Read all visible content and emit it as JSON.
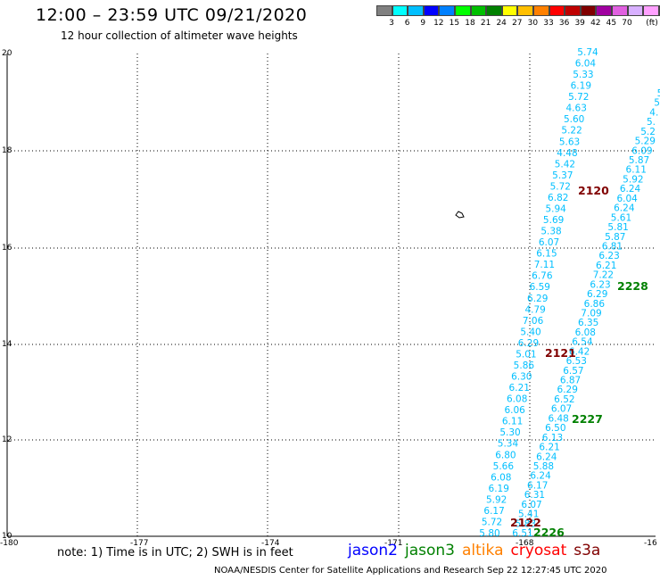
{
  "header": {
    "title": "12:00 – 23:59 UTC 09/21/2020",
    "subtitle": "12 hour collection of altimeter wave heights"
  },
  "legend": {
    "colors": [
      "#808080",
      "#00ffff",
      "#00bfff",
      "#0000ff",
      "#0080ff",
      "#00ff00",
      "#00bf00",
      "#008000",
      "#ffff00",
      "#ffbf00",
      "#ff8000",
      "#ff0000",
      "#bf0000",
      "#800000",
      "#a000a0",
      "#e060e0",
      "#d8b0ff",
      "#ffa0ff",
      "#000000"
    ],
    "labels": [
      "3",
      "6",
      "9",
      "12",
      "15",
      "18",
      "21",
      "24",
      "27",
      "30",
      "33",
      "36",
      "39",
      "42",
      "45",
      "70",
      "(ft)"
    ]
  },
  "map": {
    "lon_range": [
      -180,
      -165
    ],
    "lat_range": [
      10,
      20
    ],
    "x_tick_labels": [
      "-180",
      "-177",
      "-174",
      "-171",
      "-168",
      "-16"
    ],
    "y_tick_labels": [
      "20",
      "18",
      "16",
      "14",
      "12",
      "10"
    ],
    "land_symbol": "island-outline-icon",
    "track_west_color": "#00bfff",
    "track_east_color": "#00bfff",
    "track_west_values": [
      "5.74",
      "6.04",
      "5.33",
      "6.19",
      "5.72",
      "4.63",
      "5.60",
      "5.22",
      "5.63",
      "4.48",
      "5.42",
      "5.37",
      "5.72",
      "6.82",
      "5.94",
      "5.69",
      "5.38",
      "6.07",
      "6.15",
      "7.11",
      "6.76",
      "6.59",
      "6.29",
      "4.79",
      "7.06",
      "5.40",
      "6.29",
      "5.01",
      "5.86",
      "6.30",
      "6.21",
      "6.08",
      "6.06",
      "6.11",
      "5.30",
      "5.34",
      "6.80",
      "5.66",
      "6.08",
      "6.19",
      "5.92",
      "6.17",
      "5.72",
      "5.80"
    ],
    "track_east_values": [
      "5",
      "5",
      "4.",
      "5.",
      "5.2",
      "5.29",
      "6.09",
      "5.87",
      "6.11",
      "5.92",
      "6.24",
      "6.04",
      "6.24",
      "5.61",
      "5.81",
      "5.87",
      "6.81",
      "6.23",
      "6.21",
      "7.22",
      "6.23",
      "6.29",
      "6.86",
      "7.09",
      "6.35",
      "6.08",
      "6.54",
      "6.42",
      "6.53",
      "6.57",
      "6.87",
      "6.29",
      "6.52",
      "6.07",
      "6.48",
      "6.50",
      "6.13",
      "6.21",
      "6.24",
      "5.88",
      "6.24",
      "6.17",
      "6.31",
      "6.07",
      "5.41",
      "5.83",
      "6.51"
    ],
    "time_labels": [
      {
        "text": "2120",
        "color": "#800000"
      },
      {
        "text": "2228",
        "color": "#008000"
      },
      {
        "text": "2121",
        "color": "#800000"
      },
      {
        "text": "2227",
        "color": "#008000"
      },
      {
        "text": "2122",
        "color": "#800000"
      },
      {
        "text": "2226",
        "color": "#008000"
      }
    ]
  },
  "note": "note:  1) Time is in UTC;  2) SWH is in feet",
  "satellites": [
    {
      "name": "jason2",
      "color": "#0000ff"
    },
    {
      "name": "jason3",
      "color": "#008000"
    },
    {
      "name": "altika",
      "color": "#ff8000"
    },
    {
      "name": "cryosat",
      "color": "#ff0000"
    },
    {
      "name": "s3a",
      "color": "#800000"
    }
  ],
  "footer": "NOAA/NESDIS Center for Satellite Applications and Research    Sep 22 12:27:45 UTC 2020"
}
